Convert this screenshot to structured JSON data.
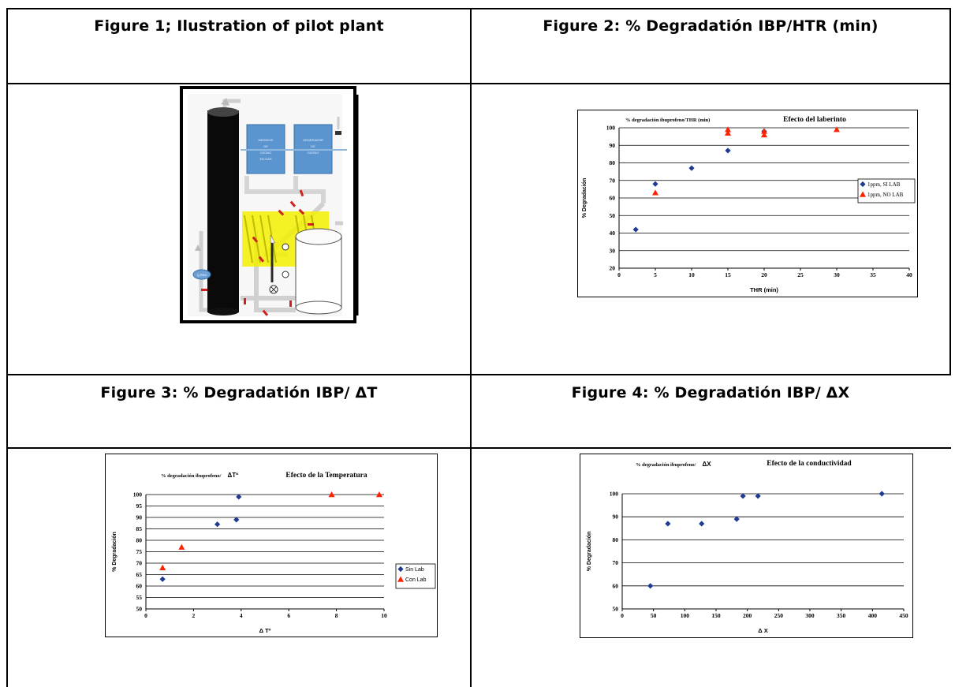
{
  "headers": {
    "fig1": "Figure 1; Ilustration of pilot plant",
    "fig2": "Figure 2: % Degradatión IBP/HTR (min)",
    "fig3": "Figure 3: % Degradatión IBP/ ΔT",
    "fig4": "Figure 4: % Degradatión IBP/ ΔX"
  },
  "plant": {
    "box1": [
      "MEDIDOR",
      "DE",
      "OZONO",
      "EN GAS"
    ],
    "box2": [
      "GENERADOR",
      "DE",
      "OZONO"
    ],
    "valve_label": "Q.RED"
  },
  "colors": {
    "sin": "#1f3a93",
    "con": "#ff2200",
    "plant_blue": "#3f88c5"
  },
  "chart_data": [
    {
      "type": "scatter",
      "title_small": "% degradación ibuprofeno/THR (min)",
      "title": "Efecto del laberinto",
      "xlabel": "THR (min)",
      "ylabel": "% Degradación",
      "xlim": [
        0,
        40
      ],
      "ylim": [
        20,
        100
      ],
      "xticks": [
        0,
        5,
        10,
        15,
        20,
        25,
        30,
        35,
        40
      ],
      "yticks": [
        20,
        30,
        40,
        50,
        60,
        70,
        80,
        90,
        100
      ],
      "legend": "right",
      "series": [
        {
          "name": "1ppm, SI LAB",
          "marker": "diamond",
          "points": [
            [
              2.3,
              42
            ],
            [
              5,
              68
            ],
            [
              10,
              77
            ],
            [
              15,
              87
            ],
            [
              20,
              98
            ]
          ]
        },
        {
          "name": "1ppm, NO LAB",
          "marker": "triangle",
          "points": [
            [
              5,
              63
            ],
            [
              15,
              97
            ],
            [
              15,
              99
            ],
            [
              20,
              96
            ],
            [
              20,
              98
            ],
            [
              30,
              99
            ]
          ]
        }
      ]
    },
    {
      "type": "scatter",
      "title_small": "% degradación ibuprofeno/",
      "title_sym": "ΔTº",
      "title": "Efecto de la Temperatura",
      "xlabel": "Δ Tº",
      "ylabel": "% Degradación",
      "xlim": [
        0,
        10
      ],
      "ylim": [
        50,
        100
      ],
      "xticks": [
        0,
        2,
        4,
        6,
        8,
        10
      ],
      "yticks": [
        50,
        55,
        60,
        65,
        70,
        75,
        80,
        85,
        90,
        95,
        100
      ],
      "legend": "right",
      "series": [
        {
          "name": "Sin Lab",
          "marker": "diamond",
          "points": [
            [
              0.7,
              63
            ],
            [
              3,
              87
            ],
            [
              3.8,
              89
            ],
            [
              3.9,
              99
            ]
          ]
        },
        {
          "name": "Con Lab",
          "marker": "triangle",
          "points": [
            [
              0.7,
              68
            ],
            [
              1.5,
              77
            ],
            [
              7.8,
              100
            ],
            [
              9.8,
              100
            ]
          ]
        }
      ]
    },
    {
      "type": "scatter",
      "title_small": "% degradación ibuprofeno/",
      "title_sym": "ΔX",
      "title": "Efecto de la conductividad",
      "xlabel": "Δ X",
      "ylabel": "% Degradación",
      "xlim": [
        0,
        450
      ],
      "ylim": [
        50,
        100
      ],
      "xticks": [
        0,
        50,
        100,
        150,
        200,
        250,
        300,
        350,
        400,
        450
      ],
      "yticks": [
        50,
        60,
        70,
        80,
        90,
        100
      ],
      "legend": "none",
      "series": [
        {
          "name": "",
          "marker": "diamond",
          "points": [
            [
              45,
              60
            ],
            [
              73,
              87
            ],
            [
              127,
              87
            ],
            [
              183,
              89
            ],
            [
              193,
              99
            ],
            [
              217,
              99
            ],
            [
              415,
              100
            ]
          ]
        }
      ]
    }
  ]
}
